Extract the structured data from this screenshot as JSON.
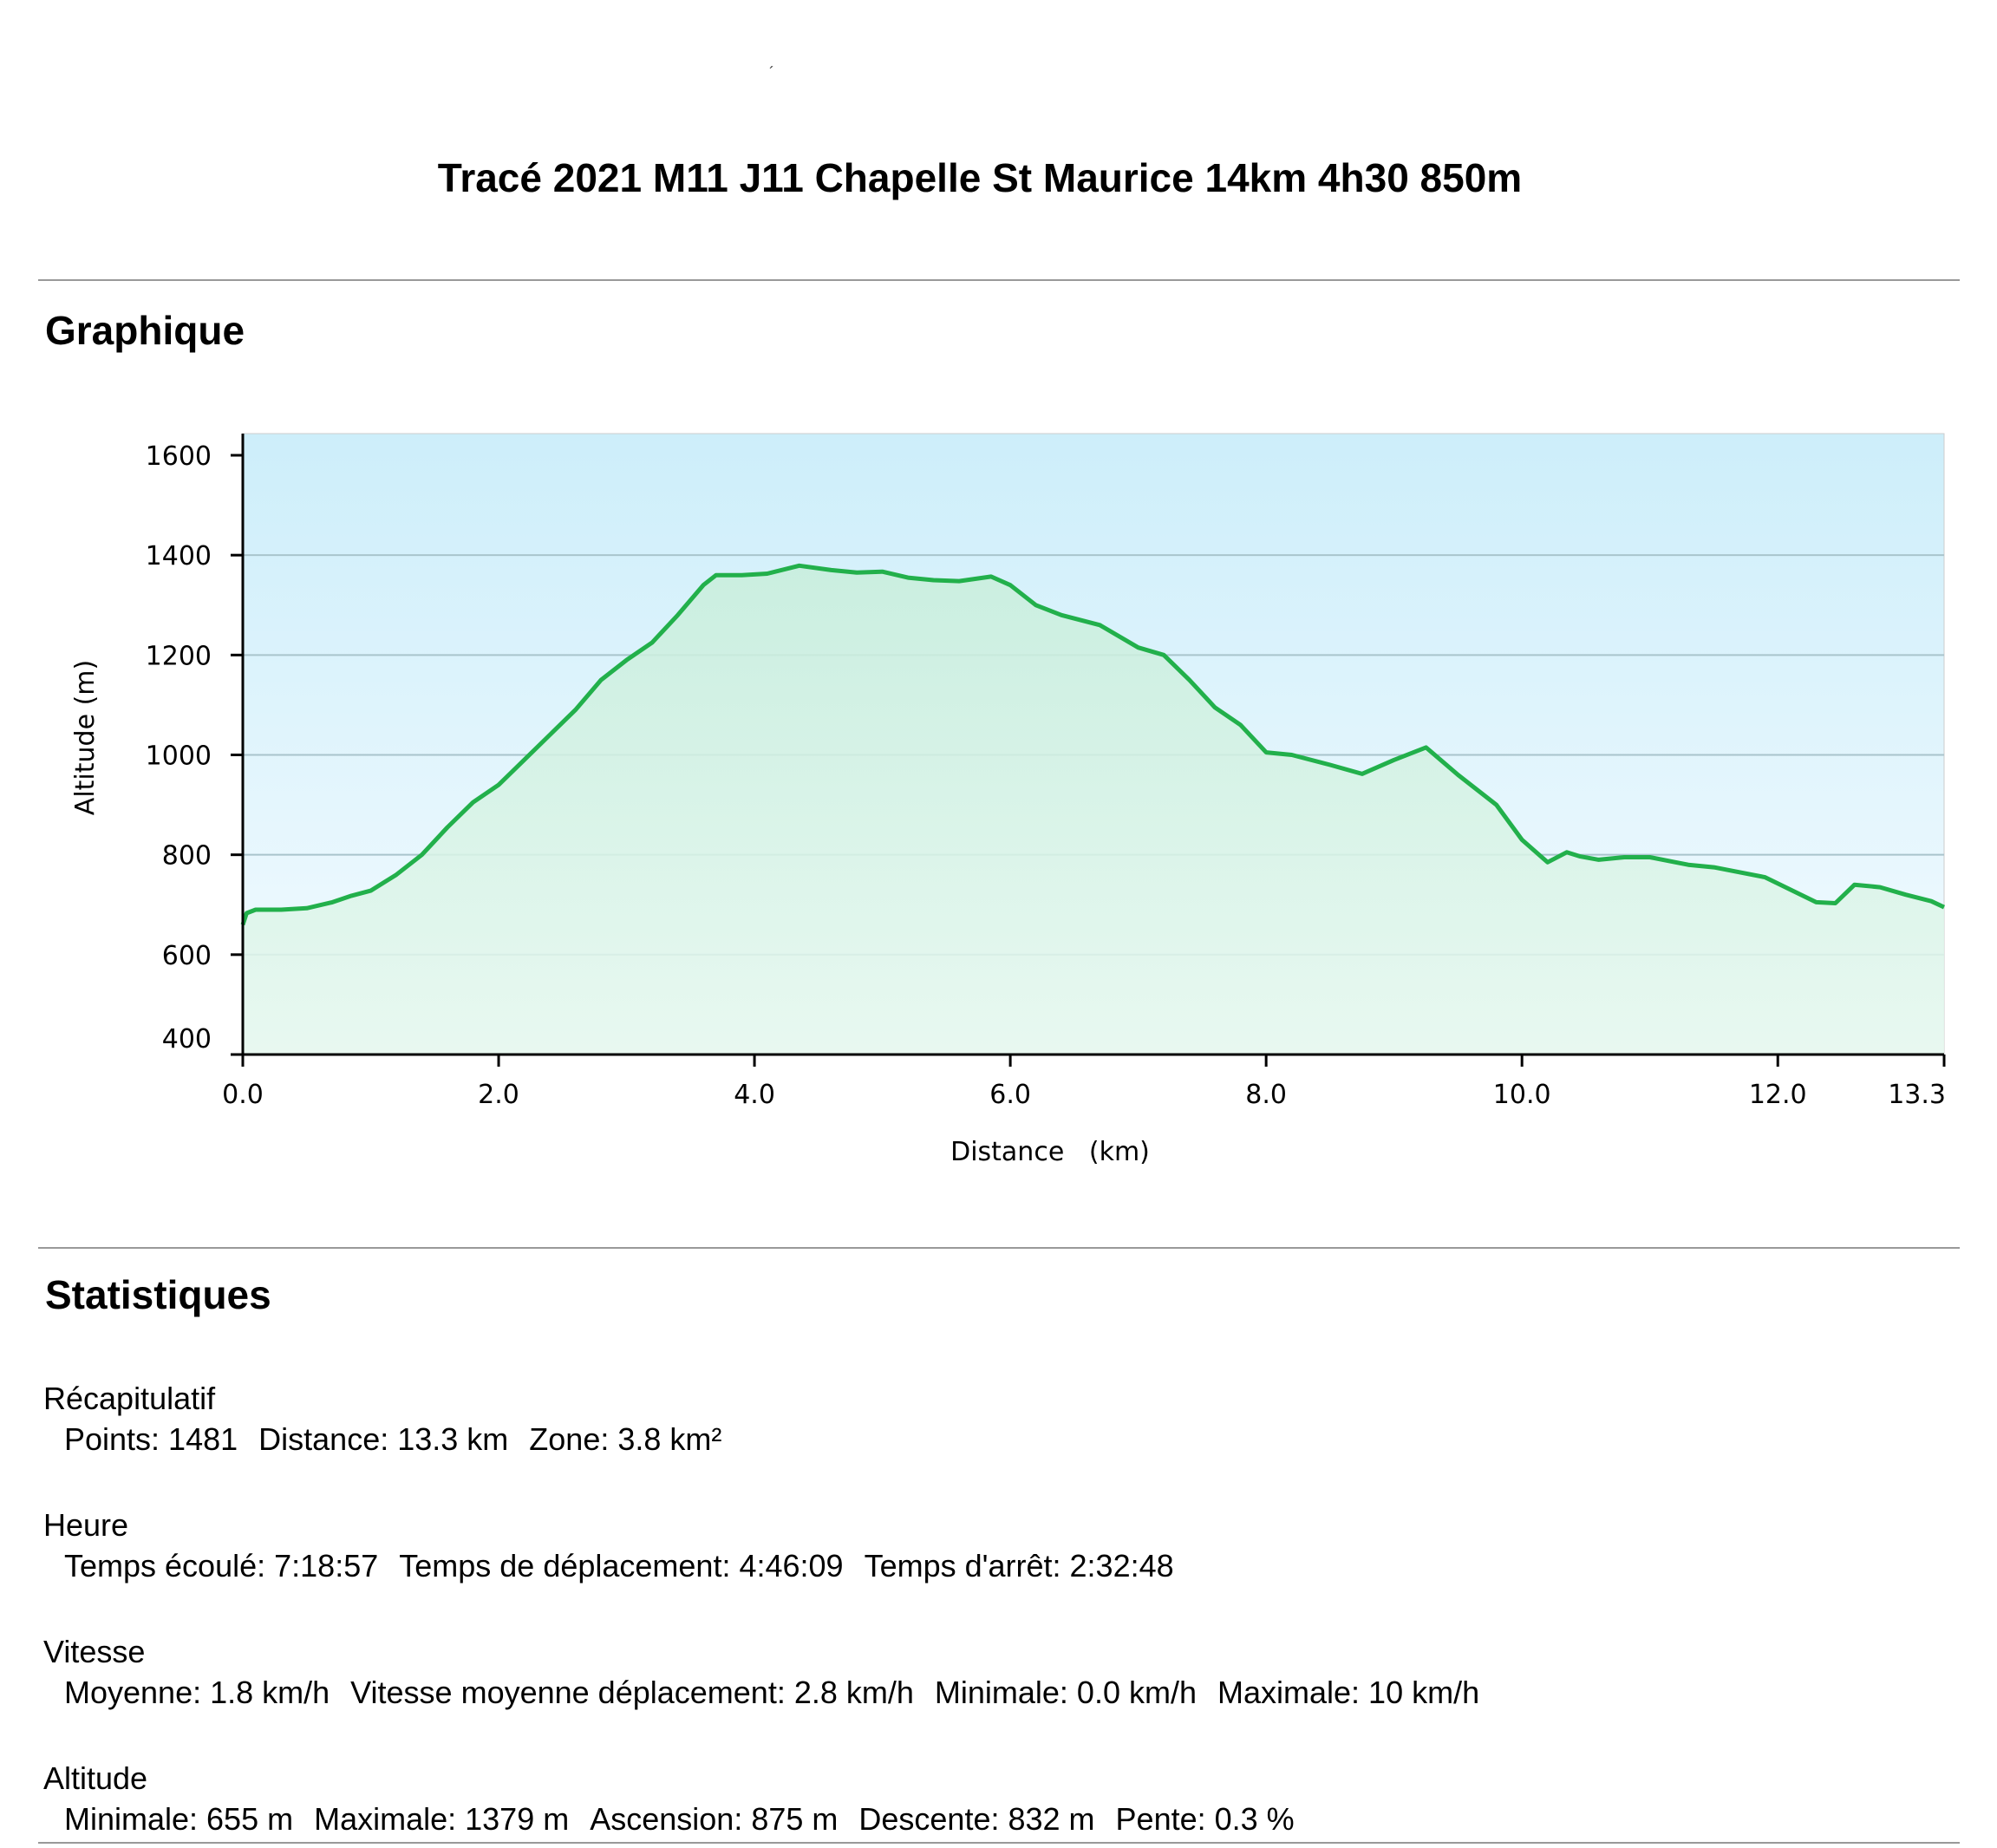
{
  "header": {
    "mark": "´",
    "title": "Tracé 2021 M11 J11 Chapelle St Maurice 14km 4h30 850m"
  },
  "sections": {
    "chart_title": "Graphique",
    "stats_title": "Statistiques"
  },
  "chart_data": {
    "type": "area",
    "xlabel": "Distance   (km)",
    "ylabel": "Altitude (m)",
    "xlim": [
      0,
      13.3
    ],
    "ylim": [
      400,
      1600
    ],
    "xticks": [
      0.0,
      2.0,
      4.0,
      6.0,
      8.0,
      10.0,
      12.0,
      13.3
    ],
    "xtick_labels": [
      "0.0",
      "2.0",
      "4.0",
      "6.0",
      "8.0",
      "10.0",
      "12.0",
      "13.3"
    ],
    "yticks": [
      400,
      600,
      800,
      1000,
      1200,
      1400,
      1600
    ],
    "ytick_labels": [
      "400",
      "600",
      "800",
      "1000",
      "1200",
      "1400",
      "1600"
    ],
    "grid": true,
    "line_color": "#22b04b",
    "fill_color": "#d6f5e4",
    "background_top": "#cdeefa",
    "background_bottom": "#f4fbff",
    "x": [
      0.0,
      0.03,
      0.1,
      0.3,
      0.5,
      0.7,
      0.85,
      1.0,
      1.2,
      1.4,
      1.6,
      1.8,
      2.0,
      2.2,
      2.4,
      2.6,
      2.8,
      3.0,
      3.2,
      3.4,
      3.6,
      3.7,
      3.9,
      4.1,
      4.35,
      4.6,
      4.8,
      5.0,
      5.2,
      5.4,
      5.6,
      5.85,
      6.0,
      6.2,
      6.4,
      6.7,
      7.0,
      7.2,
      7.4,
      7.6,
      7.8,
      8.0,
      8.2,
      8.5,
      8.75,
      9.0,
      9.25,
      9.5,
      9.8,
      10.0,
      10.2,
      10.35,
      10.45,
      10.6,
      10.8,
      11.0,
      11.2,
      11.3,
      11.5,
      11.7,
      11.9,
      12.1,
      12.3,
      12.45,
      12.6,
      12.8,
      13.0,
      13.2,
      13.3
    ],
    "y": [
      660,
      683,
      690,
      690,
      693,
      705,
      718,
      728,
      760,
      800,
      855,
      905,
      940,
      990,
      1040,
      1090,
      1150,
      1190,
      1225,
      1280,
      1340,
      1360,
      1360,
      1363,
      1379,
      1370,
      1365,
      1367,
      1355,
      1350,
      1348,
      1357,
      1340,
      1300,
      1280,
      1260,
      1215,
      1200,
      1150,
      1095,
      1060,
      1005,
      1000,
      980,
      962,
      990,
      1015,
      960,
      900,
      830,
      785,
      805,
      797,
      790,
      795,
      795,
      785,
      780,
      775,
      765,
      755,
      730,
      705,
      703,
      740,
      735,
      720,
      707,
      695
    ]
  },
  "stats": [
    {
      "title": "Récapitulatif",
      "items": [
        "Points: 1481",
        "Distance: 13.3 km",
        "Zone: 3.8 km²"
      ]
    },
    {
      "title": "Heure",
      "items": [
        "Temps écoulé: 7:18:57",
        "Temps de déplacement: 4:46:09",
        "Temps d'arrêt: 2:32:48"
      ]
    },
    {
      "title": "Vitesse",
      "items": [
        "Moyenne: 1.8 km/h",
        "Vitesse moyenne déplacement: 2.8 km/h",
        "Minimale: 0.0 km/h",
        "Maximale: 10 km/h"
      ]
    },
    {
      "title": "Altitude",
      "items": [
        "Minimale: 655 m",
        "Maximale: 1379 m",
        "Ascension: 875 m",
        "Descente: 832 m",
        "Pente: 0.3 %"
      ]
    }
  ]
}
